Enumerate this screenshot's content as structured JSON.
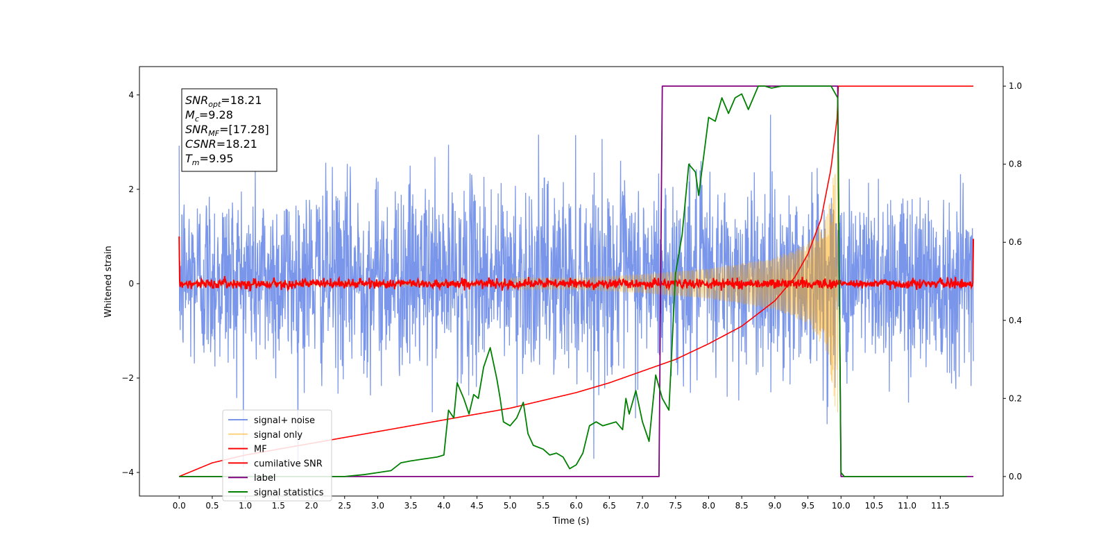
{
  "chart_data": {
    "type": "line",
    "title": "",
    "xlabel": "Time (s)",
    "ylabel": "Whitened strain",
    "ylabel_right": "",
    "xlim": [
      -0.6,
      12.45
    ],
    "ylim": [
      -4.5,
      4.6
    ],
    "y2lim": [
      -0.05,
      1.05
    ],
    "grid": false,
    "legend_position": "lower-left",
    "x_ticks": [
      "0.0",
      "0.5",
      "1.0",
      "1.5",
      "2.0",
      "2.5",
      "3.0",
      "3.5",
      "4.0",
      "4.5",
      "5.0",
      "5.5",
      "6.0",
      "6.5",
      "7.0",
      "7.5",
      "8.0",
      "8.5",
      "9.0",
      "9.5",
      "10.0",
      "10.5",
      "11.0",
      "11.5"
    ],
    "y_ticks": [
      "-4",
      "-2",
      "0",
      "2",
      "4"
    ],
    "y2_ticks": [
      "0.0",
      "0.2",
      "0.4",
      "0.6",
      "0.8",
      "1.0"
    ],
    "annotation": [
      {
        "base": "SNR",
        "sub": "opt",
        "value": "=18.21"
      },
      {
        "base": "M",
        "sub": "c",
        "value": "=9.28"
      },
      {
        "base": "SNR",
        "sub": "MF",
        "value": "=[17.28]"
      },
      {
        "base": "CSNR",
        "sub": "",
        "value": "=18.21"
      },
      {
        "base": "T",
        "sub": "m",
        "value": "=9.95"
      }
    ],
    "colors": {
      "signal_noise": "#4169e1",
      "signal_only": "#ffa500",
      "mf": "#ff0000",
      "cumulative_snr": "#ff0000",
      "label": "#800080",
      "signal_statistics": "#008000"
    },
    "series": [
      {
        "name": "signal+ noise",
        "axis": "left",
        "kind": "noise",
        "x_range": [
          0,
          12.0
        ],
        "amplitude_1sigma": 1.0,
        "peak_range": [
          -3.9,
          4.1
        ]
      },
      {
        "name": "signal only",
        "axis": "left",
        "kind": "chirp",
        "x_range": [
          0,
          9.95
        ],
        "envelope": [
          [
            6.0,
            0.12
          ],
          [
            7.0,
            0.2
          ],
          [
            8.0,
            0.32
          ],
          [
            9.0,
            0.55
          ],
          [
            9.5,
            0.85
          ],
          [
            9.8,
            1.5
          ],
          [
            9.95,
            3.0
          ]
        ]
      },
      {
        "name": "MF",
        "axis": "left",
        "kind": "mf",
        "x_range": [
          0,
          12.0
        ],
        "start": 1.0,
        "end": 0.95,
        "noise": 0.05
      },
      {
        "name": "cumilative SNR",
        "axis": "right",
        "x": [
          0,
          0.5,
          1,
          1.5,
          2,
          2.5,
          3,
          3.5,
          4,
          4.5,
          5,
          5.5,
          6,
          6.5,
          7,
          7.5,
          8,
          8.5,
          9,
          9.3,
          9.5,
          9.7,
          9.85,
          9.95,
          12.0
        ],
        "values": [
          0.0,
          0.035,
          0.055,
          0.07,
          0.085,
          0.1,
          0.115,
          0.13,
          0.145,
          0.16,
          0.175,
          0.195,
          0.215,
          0.24,
          0.27,
          0.3,
          0.34,
          0.385,
          0.45,
          0.51,
          0.57,
          0.66,
          0.79,
          0.93,
          1.0
        ]
      },
      {
        "name": "label",
        "axis": "right",
        "x": [
          0.0,
          7.25,
          7.3,
          9.95,
          10.0,
          12.0
        ],
        "values": [
          0.0,
          0.0,
          1.0,
          1.0,
          0.0,
          0.0
        ]
      },
      {
        "name": "signal statistics",
        "axis": "right",
        "x": [
          0.0,
          0.5,
          1.0,
          1.5,
          2.0,
          2.5,
          2.8,
          3.0,
          3.2,
          3.35,
          3.5,
          3.7,
          3.9,
          4.0,
          4.07,
          4.15,
          4.2,
          4.3,
          4.38,
          4.45,
          4.52,
          4.6,
          4.7,
          4.8,
          4.85,
          4.9,
          5.0,
          5.1,
          5.2,
          5.27,
          5.35,
          5.5,
          5.6,
          5.7,
          5.8,
          5.9,
          6.0,
          6.1,
          6.2,
          6.3,
          6.4,
          6.6,
          6.7,
          6.75,
          6.8,
          6.9,
          7.0,
          7.1,
          7.2,
          7.3,
          7.4,
          7.5,
          7.6,
          7.7,
          7.8,
          7.85,
          8.0,
          8.1,
          8.2,
          8.3,
          8.4,
          8.5,
          8.6,
          8.75,
          8.85,
          8.95,
          9.1,
          9.3,
          9.5,
          9.7,
          9.85,
          9.95,
          10.0,
          10.05,
          11.0,
          11.9
        ],
        "values": [
          0.0,
          0.0,
          0.0,
          0.0,
          0.0,
          0.0,
          0.005,
          0.01,
          0.015,
          0.035,
          0.04,
          0.045,
          0.05,
          0.055,
          0.17,
          0.15,
          0.24,
          0.2,
          0.16,
          0.21,
          0.2,
          0.28,
          0.33,
          0.25,
          0.2,
          0.14,
          0.13,
          0.15,
          0.19,
          0.11,
          0.08,
          0.07,
          0.055,
          0.06,
          0.05,
          0.02,
          0.03,
          0.06,
          0.13,
          0.14,
          0.13,
          0.14,
          0.12,
          0.2,
          0.16,
          0.22,
          0.14,
          0.09,
          0.26,
          0.2,
          0.17,
          0.52,
          0.62,
          0.8,
          0.78,
          0.72,
          0.92,
          0.91,
          0.97,
          0.93,
          0.97,
          0.98,
          0.94,
          1.0,
          1.0,
          0.995,
          1.0,
          1.0,
          1.0,
          1.0,
          1.0,
          0.97,
          0.01,
          0.0,
          0.0,
          0.0
        ]
      }
    ]
  }
}
